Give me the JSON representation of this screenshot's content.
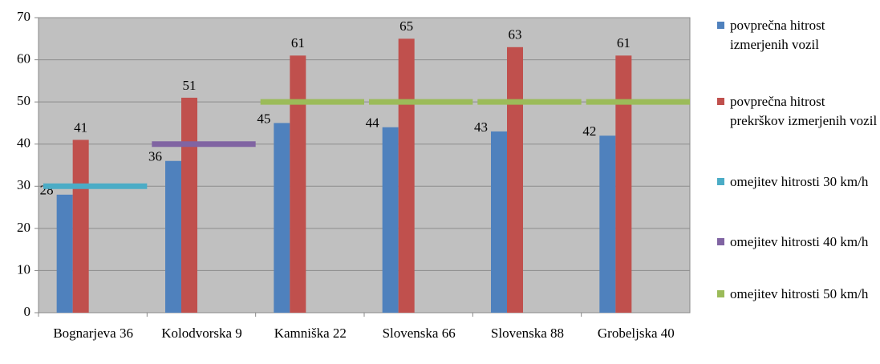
{
  "chart_data": {
    "type": "bar",
    "categories": [
      "Bognarjeva 36",
      "Kolodvorska 9",
      "Kamniška 22",
      "Slovenska 66",
      "Slovenska 88",
      "Grobeljska 40"
    ],
    "series": [
      {
        "name": "povprečna hitrost izmerjenih vozil",
        "color": "#4f81bd",
        "values": [
          28,
          36,
          45,
          44,
          43,
          42
        ]
      },
      {
        "name": "povprečna hitrost prekrškov izmerjenih vozil",
        "color": "#c0504d",
        "values": [
          41,
          51,
          61,
          65,
          63,
          61
        ]
      },
      {
        "name": "omejitev hitrosti 30 km/h",
        "color": "#4bacc6",
        "type": "line",
        "values": [
          30,
          null,
          null,
          null,
          null,
          null
        ]
      },
      {
        "name": "omejitev hitrosti 40 km/h",
        "color": "#8064a2",
        "type": "line",
        "values": [
          null,
          40,
          null,
          null,
          null,
          null
        ]
      },
      {
        "name": "omejitev hitrosti 50 km/h",
        "color": "#9bbb59",
        "type": "line",
        "values": [
          null,
          null,
          50,
          50,
          50,
          50
        ]
      }
    ],
    "ylim": [
      0,
      70
    ],
    "yticks": [
      0,
      10,
      20,
      30,
      40,
      50,
      60,
      70
    ],
    "grid": true,
    "legend": "right"
  }
}
